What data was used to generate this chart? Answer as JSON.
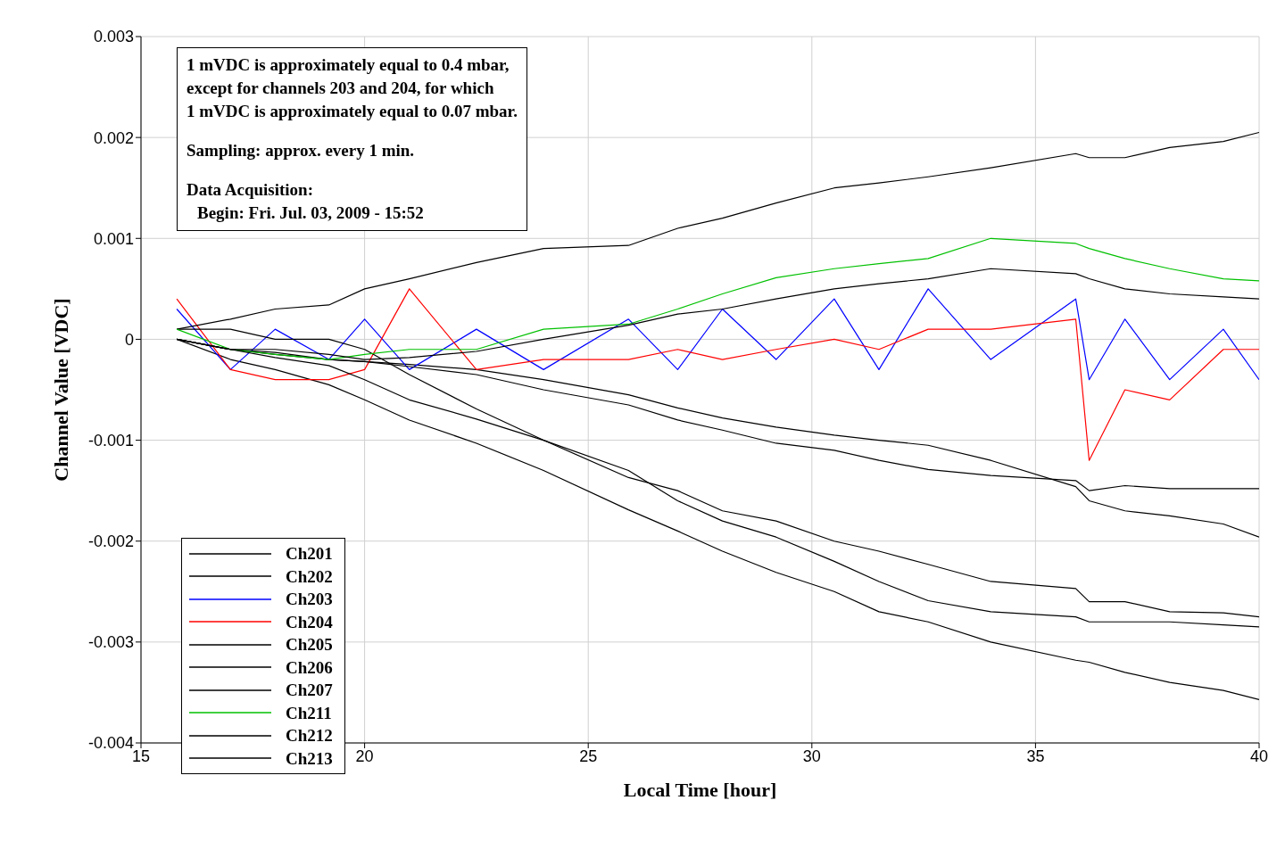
{
  "chart_data": {
    "type": "line",
    "xlabel": "Local Time [hour]",
    "ylabel": "Channel Value [VDC]",
    "annotations": [
      "1 mVDC is approximately equal to 0.4 mbar,",
      "except for channels 203 and 204, for which",
      "1 mVDC is approximately equal to 0.07 mbar.",
      "Sampling: approx. every 1 min.",
      "Data Acquisition:",
      "Begin: Fri. Jul. 03, 2009 - 15:52"
    ],
    "x": [
      15.8,
      17,
      18,
      19.2,
      20,
      21,
      22.5,
      24,
      25.9,
      27,
      28,
      29.2,
      30.5,
      31.5,
      32.6,
      34,
      35.9,
      36.2,
      37,
      38,
      39.2,
      40
    ],
    "xlim": [
      15,
      40
    ],
    "xticks": [
      15,
      20,
      25,
      30,
      35,
      40
    ],
    "ylim": [
      -0.004,
      0.003
    ],
    "yticks": [
      -0.004,
      -0.003,
      -0.002,
      -0.001,
      0,
      0.001,
      0.002,
      0.003
    ],
    "grid": true,
    "legend": "bottom left",
    "line_style": "solid",
    "series": [
      {
        "name": "Ch201",
        "color": "#000000",
        "values": [
          0,
          -0.0001,
          -0.00015,
          -0.0002,
          -0.00022,
          -0.00025,
          -0.0003,
          -0.0004,
          -0.00055,
          -0.00068,
          -0.00078,
          -0.00087,
          -0.00095,
          -0.001,
          -0.00105,
          -0.0012,
          -0.00146,
          -0.0016,
          -0.0017,
          -0.00175,
          -0.00183,
          -0.00196
        ]
      },
      {
        "name": "Ch202",
        "color": "#000000",
        "values": [
          0,
          -0.0002,
          -0.0003,
          -0.00045,
          -0.0006,
          -0.0008,
          -0.00103,
          -0.0013,
          -0.00169,
          -0.0019,
          -0.0021,
          -0.00231,
          -0.0025,
          -0.0027,
          -0.0028,
          -0.003,
          -0.00318,
          -0.0032,
          -0.0033,
          -0.0034,
          -0.00348,
          -0.00357
        ]
      },
      {
        "name": "Ch203",
        "color": "#0000ff",
        "values": [
          0.0003,
          -0.0003,
          0.0001,
          -0.0002,
          0.0002,
          -0.0003,
          0.0001,
          -0.0003,
          0.0002,
          -0.0003,
          0.0003,
          -0.0002,
          0.0004,
          -0.0003,
          0.0005,
          -0.0002,
          0.0004,
          -0.0004,
          0.0002,
          -0.0004,
          0.0001,
          -0.0004
        ]
      },
      {
        "name": "Ch204",
        "color": "#ff0000",
        "values": [
          0.0004,
          -0.0003,
          -0.0004,
          -0.0004,
          -0.0003,
          0.0005,
          -0.0003,
          -0.0002,
          -0.0002,
          -0.0001,
          -0.0002,
          -0.0001,
          0,
          -0.0001,
          0.0001,
          0.0001,
          0.0002,
          -0.0012,
          -0.0005,
          -0.0006,
          -0.0001,
          -0.0001
        ]
      },
      {
        "name": "Ch205",
        "color": "#000000",
        "values": [
          0,
          -0.0001,
          -0.00013,
          -0.0002,
          -0.00022,
          -0.00027,
          -0.00035,
          -0.0005,
          -0.00065,
          -0.0008,
          -0.0009,
          -0.00103,
          -0.0011,
          -0.0012,
          -0.00129,
          -0.00135,
          -0.0014,
          -0.0015,
          -0.00145,
          -0.00148,
          -0.00148,
          -0.00148
        ]
      },
      {
        "name": "Ch206",
        "color": "#000000",
        "values": [
          0.0001,
          0.0001,
          0,
          0,
          -0.0001,
          -0.00035,
          -0.00069,
          -0.001,
          -0.0013,
          -0.0016,
          -0.0018,
          -0.00196,
          -0.0022,
          -0.0024,
          -0.00259,
          -0.0027,
          -0.00275,
          -0.0028,
          -0.0028,
          -0.0028,
          -0.00283,
          -0.00285
        ]
      },
      {
        "name": "Ch207",
        "color": "#000000",
        "values": [
          0.0001,
          0.0002,
          0.0003,
          0.00034,
          0.0005,
          0.0006,
          0.00076,
          0.0009,
          0.00093,
          0.0011,
          0.0012,
          0.00135,
          0.0015,
          0.00155,
          0.00161,
          0.0017,
          0.00184,
          0.0018,
          0.0018,
          0.0019,
          0.00196,
          0.00205
        ]
      },
      {
        "name": "Ch211",
        "color": "#00c000",
        "values": [
          0.0001,
          -0.0001,
          -0.00015,
          -0.0002,
          -0.00015,
          -0.0001,
          -0.0001,
          0.0001,
          0.00015,
          0.0003,
          0.00045,
          0.00061,
          0.0007,
          0.00075,
          0.0008,
          0.001,
          0.00095,
          0.0009,
          0.0008,
          0.0007,
          0.0006,
          0.00058
        ]
      },
      {
        "name": "Ch212",
        "color": "#000000",
        "values": [
          0,
          -0.0001,
          -0.0001,
          -0.00015,
          -0.0002,
          -0.00018,
          -0.00012,
          0,
          0.00014,
          0.00025,
          0.0003,
          0.0004,
          0.0005,
          0.00055,
          0.0006,
          0.0007,
          0.00065,
          0.0006,
          0.0005,
          0.00045,
          0.00042,
          0.0004
        ]
      },
      {
        "name": "Ch213",
        "color": "#000000",
        "values": [
          0,
          -0.0001,
          -0.00018,
          -0.00026,
          -0.0004,
          -0.0006,
          -0.00079,
          -0.001,
          -0.00137,
          -0.0015,
          -0.0017,
          -0.0018,
          -0.002,
          -0.0021,
          -0.00223,
          -0.0024,
          -0.00247,
          -0.0026,
          -0.0026,
          -0.0027,
          -0.00271,
          -0.00275
        ]
      }
    ]
  }
}
